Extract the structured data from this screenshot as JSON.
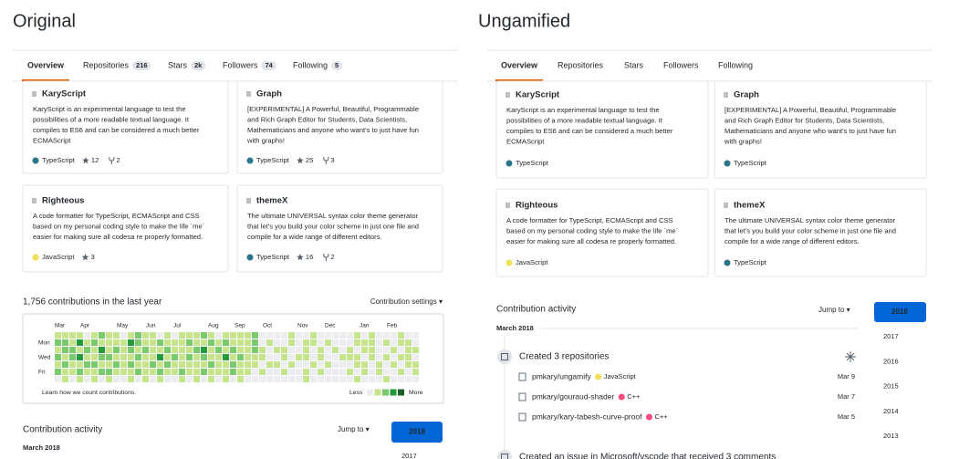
{
  "original": {
    "title": "Original",
    "tabs": [
      {
        "label": "Overview"
      },
      {
        "label": "Repositories",
        "count": "216"
      },
      {
        "label": "Stars",
        "count": "2k"
      },
      {
        "label": "Followers",
        "count": "74"
      },
      {
        "label": "Following",
        "count": "5"
      }
    ],
    "cards": [
      {
        "name": "KaryScript",
        "description": [
          "KaryScript is an experimental language to test the",
          "possibilities of a more readable textual language. It",
          "compiles to ES6 and can be considered a much better",
          "ECMAScript"
        ],
        "language": "TypeScript",
        "language_color": "#2b7489",
        "stars": 12,
        "forks": 2
      },
      {
        "name": "Graph",
        "description": [
          "[EXPERIMENTAL] A Powerful, Beautiful, Programmable",
          "and Rich Graph Editor for Students, Data Scientists,",
          "Mathematicians and anyone who want's to just have fun",
          "with graphs!"
        ],
        "language": "TypeScript",
        "language_color": "#2b7489",
        "stars": 25,
        "forks": 3
      },
      {
        "name": "Righteous",
        "description": [
          "A code formatter for TypeScript, ECMAScript and CSS",
          "based on my personal coding style to make the life `me`",
          "easier for making sure all codesa re properly formatted."
        ],
        "language": "JavaScript",
        "language_color": "#f1e05a",
        "stars": 3
      },
      {
        "name": "themeX",
        "description": [
          "The ultimate UNIVERSAL syntax color theme generator",
          "that let's you build your color scheme in just one file and",
          "compile for a wide range of different editors."
        ],
        "language": "TypeScript",
        "language_color": "#2b7489",
        "stars": 16,
        "forks": 2
      }
    ],
    "contributions": {
      "heading": "1,756 contributions in the last year",
      "settings": "Contribution settings ▾",
      "months": [
        "Mar",
        "Apr",
        "May",
        "Jun",
        "Jul",
        "Aug",
        "Sep",
        "Oct",
        "Nov",
        "Dec",
        "Jan",
        "Feb"
      ],
      "days": [
        "Mon",
        "Wed",
        "Fri"
      ],
      "level_colors": [
        "#ebedf0",
        "#c6e48b",
        "#7bc96f",
        "#239a3b",
        "#196127"
      ],
      "levels": [
        [
          1,
          1,
          1,
          1,
          0,
          1,
          2,
          1,
          1,
          0,
          1,
          2,
          1,
          1,
          0,
          1,
          0,
          1,
          1,
          1,
          2,
          1,
          0,
          1,
          1,
          1,
          1,
          2,
          0,
          0,
          0,
          0,
          1,
          0,
          0,
          1,
          0,
          0,
          0,
          0,
          0,
          1,
          0,
          1,
          0,
          0,
          0,
          1,
          0,
          0
        ],
        [
          2,
          2,
          1,
          3,
          1,
          2,
          1,
          1,
          1,
          1,
          3,
          2,
          1,
          1,
          2,
          1,
          1,
          1,
          2,
          1,
          1,
          2,
          1,
          2,
          1,
          1,
          1,
          2,
          0,
          1,
          0,
          0,
          1,
          0,
          1,
          1,
          0,
          1,
          0,
          0,
          0,
          1,
          1,
          1,
          0,
          1,
          0,
          1,
          1,
          0
        ],
        [
          1,
          2,
          2,
          1,
          2,
          1,
          3,
          1,
          2,
          1,
          2,
          1,
          2,
          1,
          1,
          2,
          1,
          1,
          1,
          2,
          3,
          1,
          2,
          1,
          2,
          1,
          1,
          2,
          1,
          0,
          1,
          1,
          0,
          0,
          1,
          0,
          1,
          0,
          1,
          0,
          1,
          0,
          1,
          1,
          0,
          0,
          1,
          0,
          1,
          1
        ],
        [
          2,
          1,
          2,
          3,
          1,
          1,
          2,
          2,
          1,
          1,
          1,
          2,
          1,
          1,
          3,
          1,
          2,
          1,
          2,
          1,
          2,
          1,
          1,
          3,
          1,
          2,
          1,
          1,
          1,
          0,
          0,
          1,
          0,
          1,
          1,
          0,
          1,
          0,
          0,
          1,
          1,
          1,
          0,
          1,
          0,
          1,
          0,
          1,
          1,
          0
        ],
        [
          1,
          2,
          1,
          1,
          2,
          2,
          1,
          1,
          2,
          1,
          2,
          1,
          1,
          2,
          1,
          2,
          1,
          1,
          1,
          1,
          1,
          2,
          1,
          1,
          2,
          1,
          1,
          1,
          0,
          1,
          1,
          0,
          1,
          0,
          0,
          1,
          0,
          1,
          0,
          0,
          0,
          1,
          1,
          0,
          1,
          0,
          1,
          0,
          1,
          1
        ],
        [
          2,
          1,
          1,
          2,
          1,
          1,
          2,
          2,
          1,
          1,
          1,
          2,
          1,
          1,
          2,
          1,
          1,
          2,
          1,
          1,
          2,
          1,
          1,
          1,
          2,
          1,
          1,
          0,
          1,
          0,
          0,
          1,
          0,
          0,
          1,
          0,
          1,
          0,
          0,
          0,
          1,
          0,
          1,
          0,
          1,
          0,
          0,
          1,
          0,
          1
        ],
        [
          0,
          1,
          0,
          1,
          0,
          1,
          0,
          1,
          0,
          0,
          1,
          0,
          1,
          0,
          1,
          0,
          0,
          1,
          0,
          1,
          0,
          1,
          0,
          1,
          0,
          1,
          0,
          0,
          0,
          0,
          0,
          0,
          0,
          0,
          1,
          0,
          0,
          0,
          0,
          0,
          0,
          1,
          0,
          0,
          0,
          1,
          0,
          0,
          0,
          0
        ]
      ],
      "learn": "Learn how we count contributions.",
      "less": "Less",
      "more": "More"
    },
    "activity": {
      "heading": "Contribution activity",
      "jump": "Jump to ▾",
      "years": [
        2018,
        2017
      ],
      "month": "March 2018"
    }
  },
  "ungamified": {
    "title": "Ungamified",
    "tabs": [
      {
        "label": "Overview"
      },
      {
        "label": "Repositories"
      },
      {
        "label": "Stars"
      },
      {
        "label": "Followers"
      },
      {
        "label": "Following"
      }
    ],
    "cards": [
      {
        "name": "KaryScript",
        "description": [
          "KaryScript is an experimental language to test the",
          "possibilities of a more readable textual language. It",
          "compiles to ES6 and can be considered a much better",
          "ECMAScript"
        ],
        "language": "TypeScript",
        "language_color": "#2b7489"
      },
      {
        "name": "Graph",
        "description": [
          "[EXPERIMENTAL] A Powerful, Beautiful, Programmable",
          "and Rich Graph Editor for Students, Data Scientists,",
          "Mathematicians and anyone who want's to just have fun",
          "with graphs!"
        ],
        "language": "TypeScript",
        "language_color": "#2b7489"
      },
      {
        "name": "Righteous",
        "description": [
          "A code formatter for TypeScript, ECMAScript and CSS",
          "based on my personal coding style to make the life `me`",
          "easier for making sure all codesa re properly formatted."
        ],
        "language": "JavaScript",
        "language_color": "#f1e05a"
      },
      {
        "name": "themeX",
        "description": [
          "The ultimate UNIVERSAL syntax color theme generator",
          "that let's you build your color scheme in just one file and",
          "compile for a wide range of different editors."
        ],
        "language": "TypeScript",
        "language_color": "#2b7489"
      }
    ],
    "activity": {
      "heading": "Contribution activity",
      "jump": "Jump to ▾",
      "years": [
        2018,
        2017,
        2016,
        2015,
        2014,
        2013
      ],
      "month": "March 2018",
      "events": [
        {
          "text": "Created 3 repositories",
          "repos": [
            {
              "name": "pmkary/ungamify",
              "language": "JavaScript",
              "language_color": "#f1e05a",
              "date": "Mar 9"
            },
            {
              "name": "pmkary/gouraud-shader",
              "language": "C++",
              "language_color": "#f34b7d",
              "date": "Mar 7"
            },
            {
              "name": "pmkary/kary-tabesh-curve-proof",
              "language": "C++",
              "language_color": "#f34b7d",
              "date": "Mar 5"
            }
          ]
        },
        {
          "text": "Created an issue in Microsoft/vscode that received 3 comments"
        }
      ]
    }
  }
}
